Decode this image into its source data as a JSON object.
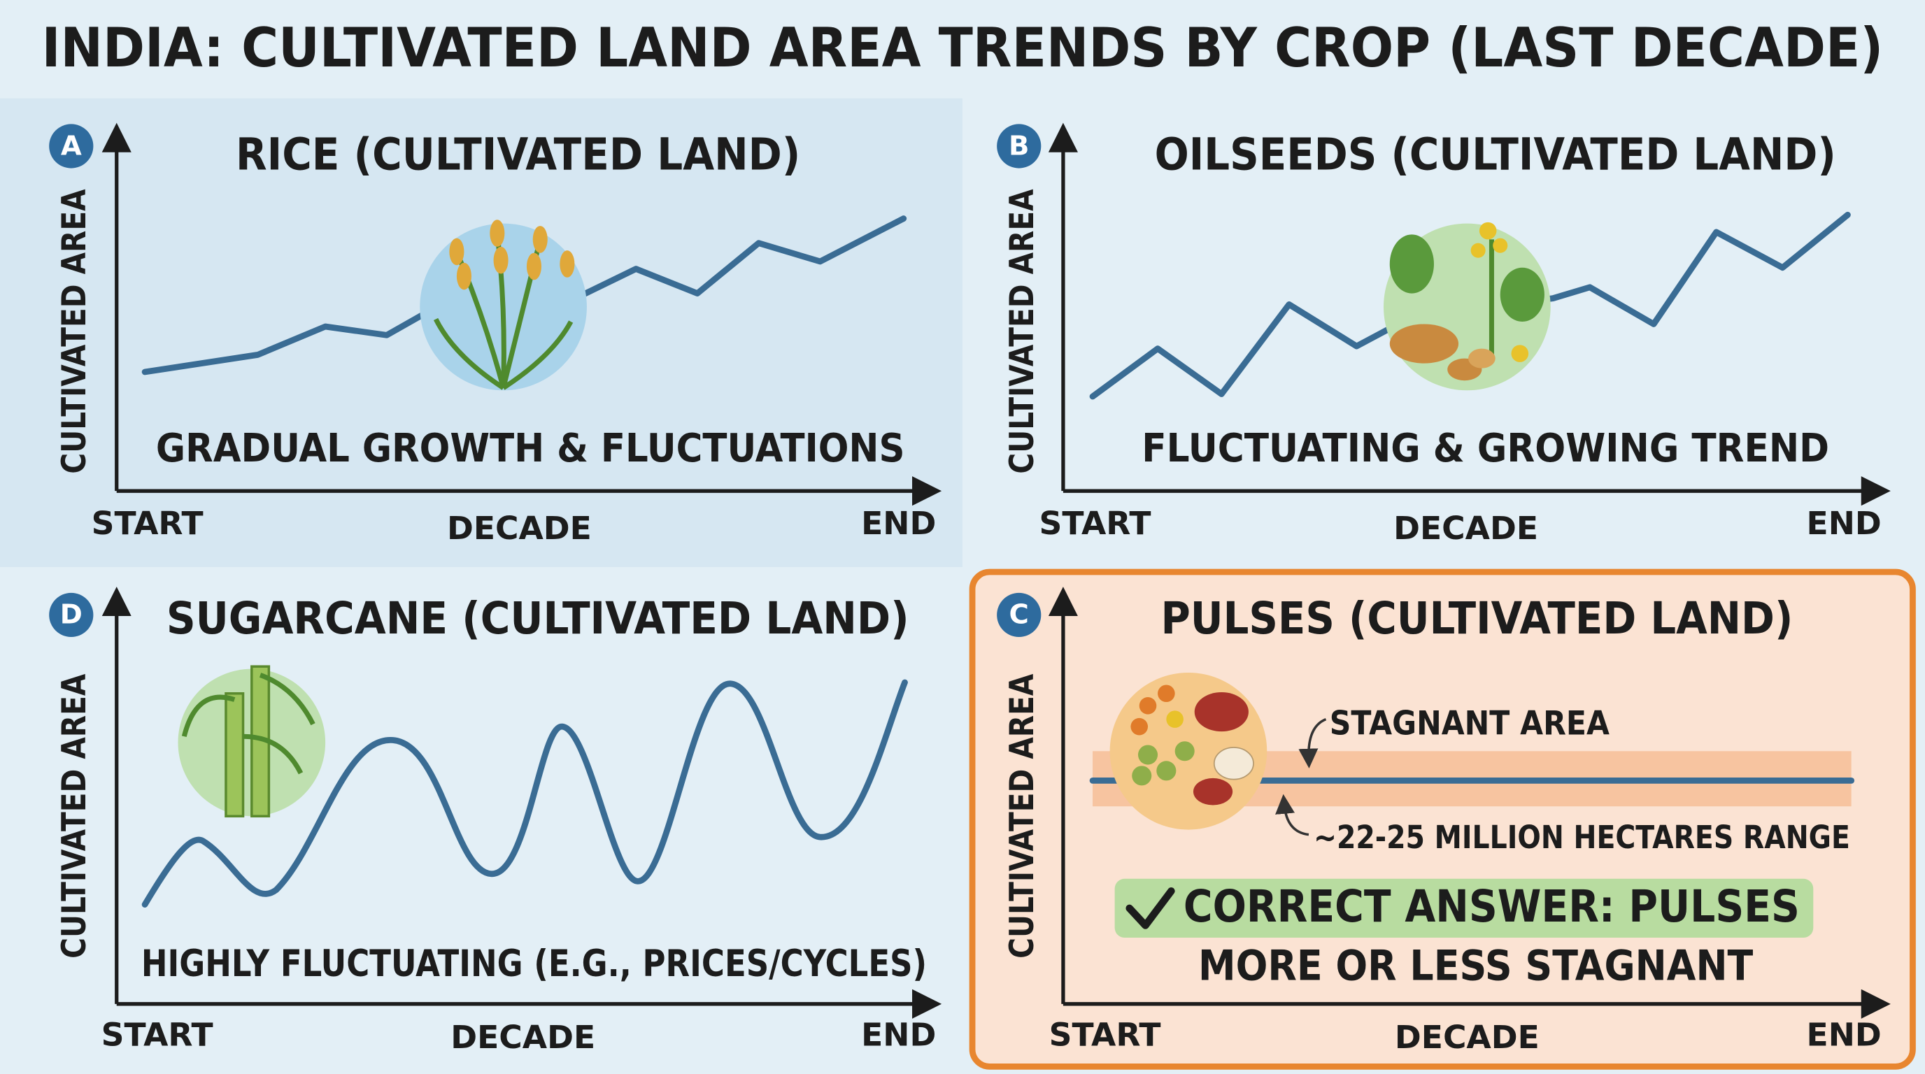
{
  "header": {
    "title": "INDIA: CULTIVATED LAND AREA TRENDS BY CROP (LAST DECADE)"
  },
  "panels": [
    {
      "letter": "A",
      "title": "RICE (CULTIVATED LAND)",
      "y_label": "CULTIVATED AREA",
      "caption": "GRADUAL GROWTH & FLUCTUATIONS",
      "x_start": "START",
      "x_middle": "DECADE",
      "x_end": "END"
    },
    {
      "letter": "B",
      "title": "OILSEEDS (CULTIVATED LAND)",
      "y_label": "CULTIVATED AREA",
      "caption": "FLUCTUATING & GROWING TREND",
      "x_start": "START",
      "x_middle": "DECADE",
      "x_end": "END"
    },
    {
      "letter": "D",
      "title": "SUGARCANE (CULTIVATED LAND)",
      "y_label": "CULTIVATED AREA",
      "caption": "HIGHLY FLUCTUATING (E.G., PRICES/CYCLES)",
      "x_start": "START",
      "x_middle": "DECADE",
      "x_end": "END"
    },
    {
      "letter": "C",
      "title": "PULSES (CULTIVATED LAND)",
      "y_label": "CULTIVATED AREA",
      "x_start": "START",
      "x_middle": "DECADE",
      "x_end": "END",
      "annotations": [
        "STAGNANT AREA",
        "~22-25 MILLION HECTARES RANGE"
      ],
      "answer": "CORRECT ANSWER: PULSES",
      "answer_note": "MORE OR LESS STAGNANT"
    }
  ]
}
